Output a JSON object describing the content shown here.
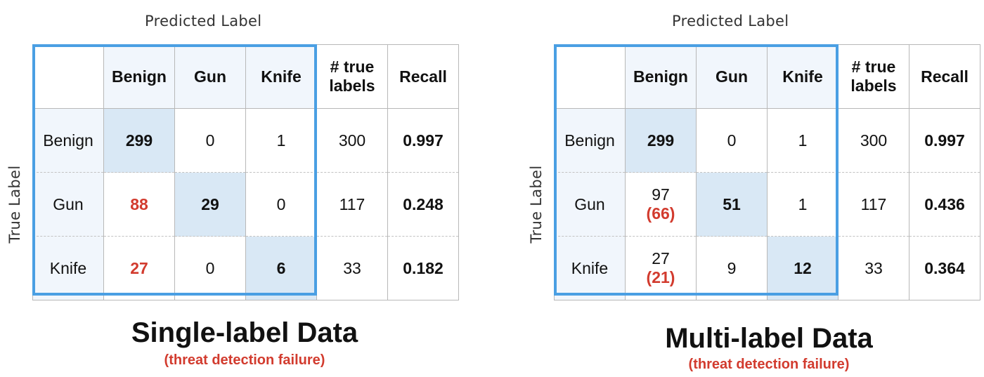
{
  "chart_data": [
    {
      "type": "table",
      "title": "Single-label Data",
      "subtitle": "(threat detection failure)",
      "xlabel": "Predicted Label",
      "ylabel": "True Label",
      "columns": [
        "Benign",
        "Gun",
        "Knife",
        "# true labels",
        "Recall"
      ],
      "rows": [
        {
          "label": "Benign",
          "cells": [
            "299",
            "0",
            "1"
          ],
          "subcells": [
            "",
            "",
            ""
          ],
          "total": "300",
          "recall": "0.997"
        },
        {
          "label": "Gun",
          "cells": [
            "88",
            "29",
            "0"
          ],
          "subcells": [
            "",
            "",
            ""
          ],
          "total": "117",
          "recall": "0.248"
        },
        {
          "label": "Knife",
          "cells": [
            "27",
            "0",
            "6"
          ],
          "subcells": [
            "",
            "",
            ""
          ],
          "total": "33",
          "recall": "0.182"
        }
      ]
    },
    {
      "type": "table",
      "title": "Multi-label Data",
      "subtitle": "(threat detection failure)",
      "xlabel": "Predicted Label",
      "ylabel": "True Label",
      "columns": [
        "Benign",
        "Gun",
        "Knife",
        "# true labels",
        "Recall"
      ],
      "rows": [
        {
          "label": "Benign",
          "cells": [
            "299",
            "0",
            "1"
          ],
          "subcells": [
            "",
            "",
            ""
          ],
          "total": "300",
          "recall": "0.997"
        },
        {
          "label": "Gun",
          "cells": [
            "97",
            "51",
            "1"
          ],
          "subcells": [
            "(66)",
            "",
            ""
          ],
          "total": "117",
          "recall": "0.436"
        },
        {
          "label": "Knife",
          "cells": [
            "27",
            "9",
            "12"
          ],
          "subcells": [
            "(21)",
            "",
            ""
          ],
          "total": "33",
          "recall": "0.364"
        }
      ]
    }
  ],
  "colors": {
    "frame": "#4a9fe3",
    "diagonal": "#d9e8f5",
    "header_bg": "#f1f6fc",
    "failure": "#d23b2e"
  }
}
